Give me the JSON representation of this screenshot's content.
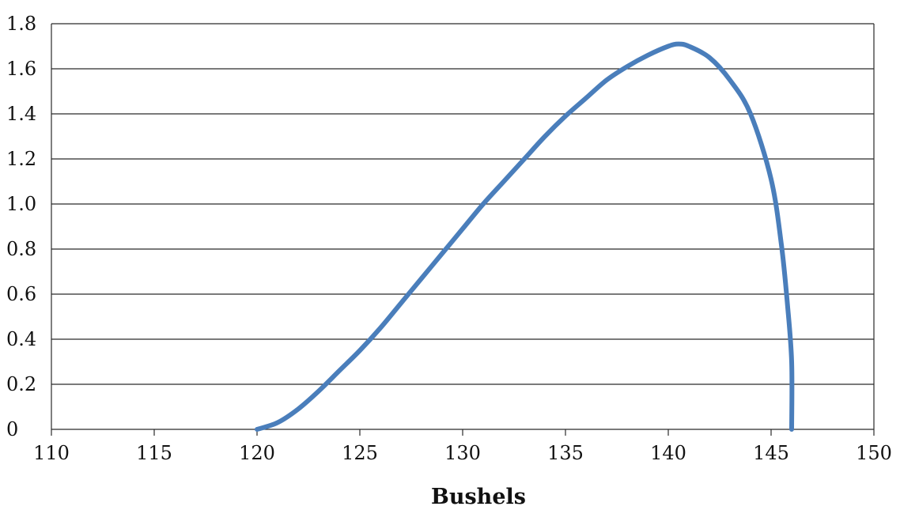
{
  "chart_data": {
    "type": "line",
    "title": "",
    "xlabel": "Bushels",
    "ylabel": "",
    "xlim": [
      110,
      150
    ],
    "ylim": [
      0,
      1.8
    ],
    "x_ticks": [
      110,
      115,
      120,
      125,
      130,
      135,
      140,
      145,
      150
    ],
    "x_tick_labels": [
      "110",
      "115",
      "120",
      "125",
      "130",
      "135",
      "140",
      "145",
      "150"
    ],
    "y_ticks": [
      0,
      0.2,
      0.4,
      0.6,
      0.8,
      1.0,
      1.2,
      1.4,
      1.6,
      1.8
    ],
    "y_tick_labels": [
      "0",
      "0.2",
      "0.4",
      "0.6",
      "0.8",
      "1.0",
      "1.2",
      "1.4",
      "1.6",
      "1.8"
    ],
    "grid": "horizontal",
    "legend": "none",
    "series": [
      {
        "color": "#4a7ebb",
        "x": [
          120,
          121,
          122,
          123,
          124,
          125,
          126,
          127,
          128,
          129,
          130,
          131,
          132,
          133,
          134,
          135,
          136,
          137,
          138,
          139,
          140,
          140.5,
          141,
          142,
          143,
          144,
          145,
          145.5,
          145.8,
          146,
          146
        ],
        "y": [
          0,
          0.03,
          0.09,
          0.17,
          0.26,
          0.35,
          0.45,
          0.56,
          0.67,
          0.78,
          0.89,
          1.0,
          1.1,
          1.2,
          1.3,
          1.39,
          1.47,
          1.55,
          1.61,
          1.66,
          1.7,
          1.71,
          1.7,
          1.65,
          1.55,
          1.4,
          1.11,
          0.82,
          0.55,
          0.3,
          0
        ]
      }
    ]
  }
}
